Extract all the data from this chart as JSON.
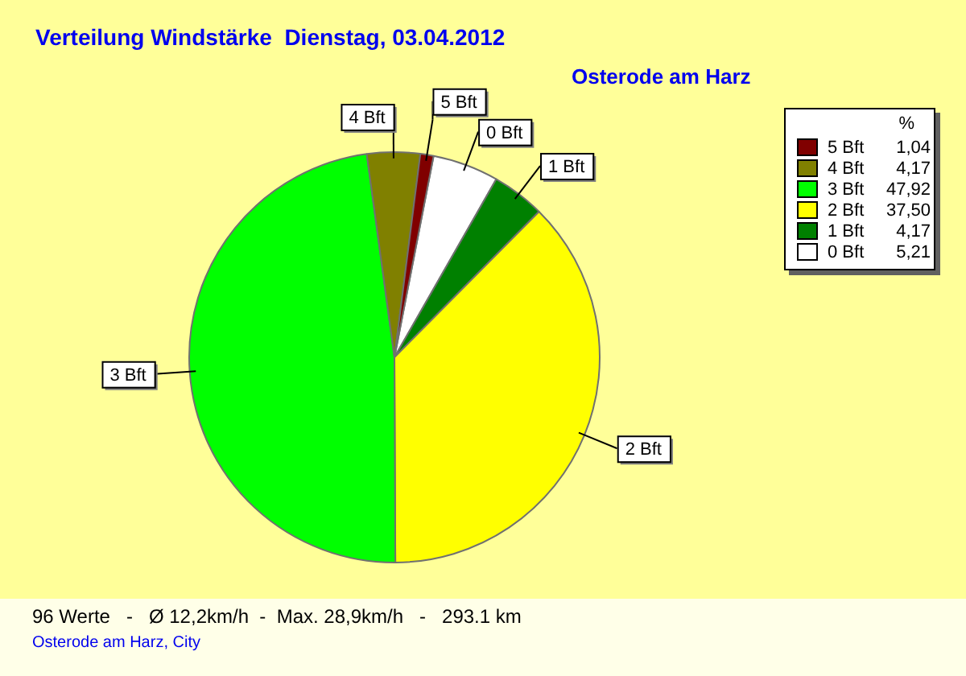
{
  "chart_data": {
    "type": "pie",
    "title": "Verteilung Windstärke  Dienstag, 03.04.2012",
    "subtitle": "Osterode am Harz",
    "categories": [
      "5 Bft",
      "4 Bft",
      "3 Bft",
      "2 Bft",
      "1 Bft",
      "0 Bft"
    ],
    "values": [
      1.04,
      4.17,
      47.92,
      37.5,
      4.17,
      5.21
    ],
    "colors": [
      "#800000",
      "#808000",
      "#00ff00",
      "#ffff00",
      "#008000",
      "#ffffff"
    ],
    "value_labels": [
      "1,04",
      "4,17",
      "47,92",
      "37,50",
      "4,17",
      "5,21"
    ],
    "legend": "top right",
    "legend_title": "%",
    "annotations": [
      "96 Werte   -   Ø 12,2km/h  -  Max. 28,9km/h   -   293.1 km",
      "Osterode am Harz, City"
    ]
  }
}
